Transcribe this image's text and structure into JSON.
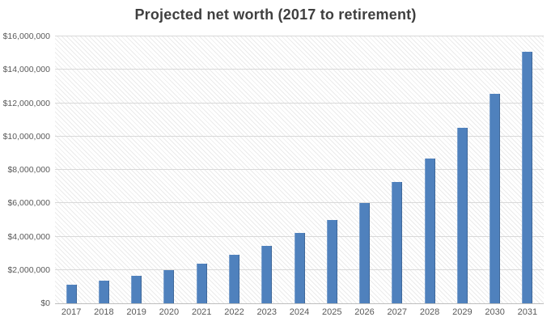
{
  "chart_data": {
    "type": "bar",
    "title": "Projected net worth (2017 to retirement)",
    "categories": [
      "2017",
      "2018",
      "2019",
      "2020",
      "2021",
      "2022",
      "2023",
      "2024",
      "2025",
      "2026",
      "2027",
      "2028",
      "2029",
      "2030",
      "2031"
    ],
    "values": [
      1100000,
      1350000,
      1650000,
      2000000,
      2400000,
      2900000,
      3450000,
      4200000,
      5000000,
      6000000,
      7250000,
      8700000,
      10500000,
      12550000,
      15100000
    ],
    "xlabel": "",
    "ylabel": "",
    "ylim": [
      0,
      16000000
    ],
    "ytick_step": 2000000,
    "ytick_labels": [
      "$0",
      "$2,000,000",
      "$4,000,000",
      "$6,000,000",
      "$8,000,000",
      "$10,000,000",
      "$12,000,000",
      "$14,000,000",
      "$16,000,000"
    ],
    "grid": true,
    "legend_position": "none",
    "colors": {
      "bar": "#4f81bd",
      "gridline": "#d9d9d9",
      "axis_line": "#bfbfbf",
      "title_text": "#3f3f3f",
      "tick_text": "#595959"
    }
  }
}
